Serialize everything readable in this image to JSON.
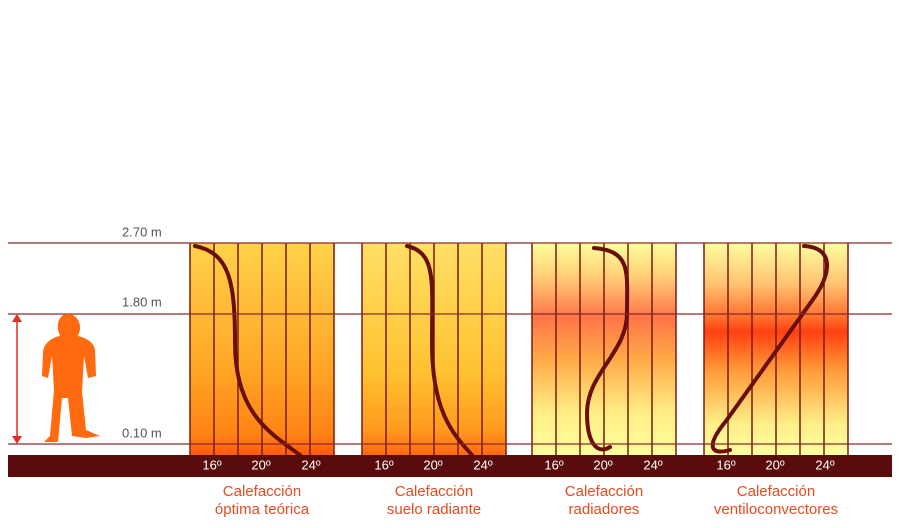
{
  "heights": [
    "2.70 m",
    "1.80 m",
    "0.10 m"
  ],
  "panels": [
    {
      "caption": [
        "Calefacción",
        "óptima teórica"
      ],
      "temps": [
        "16º",
        "20º",
        "24º"
      ]
    },
    {
      "caption": [
        "Calefacción",
        "suelo radiante"
      ],
      "temps": [
        "16º",
        "20º",
        "24º"
      ]
    },
    {
      "caption": [
        "Calefacción",
        "radiadores"
      ],
      "temps": [
        "16º",
        "20º",
        "24º"
      ]
    },
    {
      "caption": [
        "Calefacción",
        "ventiloconvectores"
      ],
      "temps": [
        "16º",
        "20º",
        "24º"
      ]
    }
  ]
}
